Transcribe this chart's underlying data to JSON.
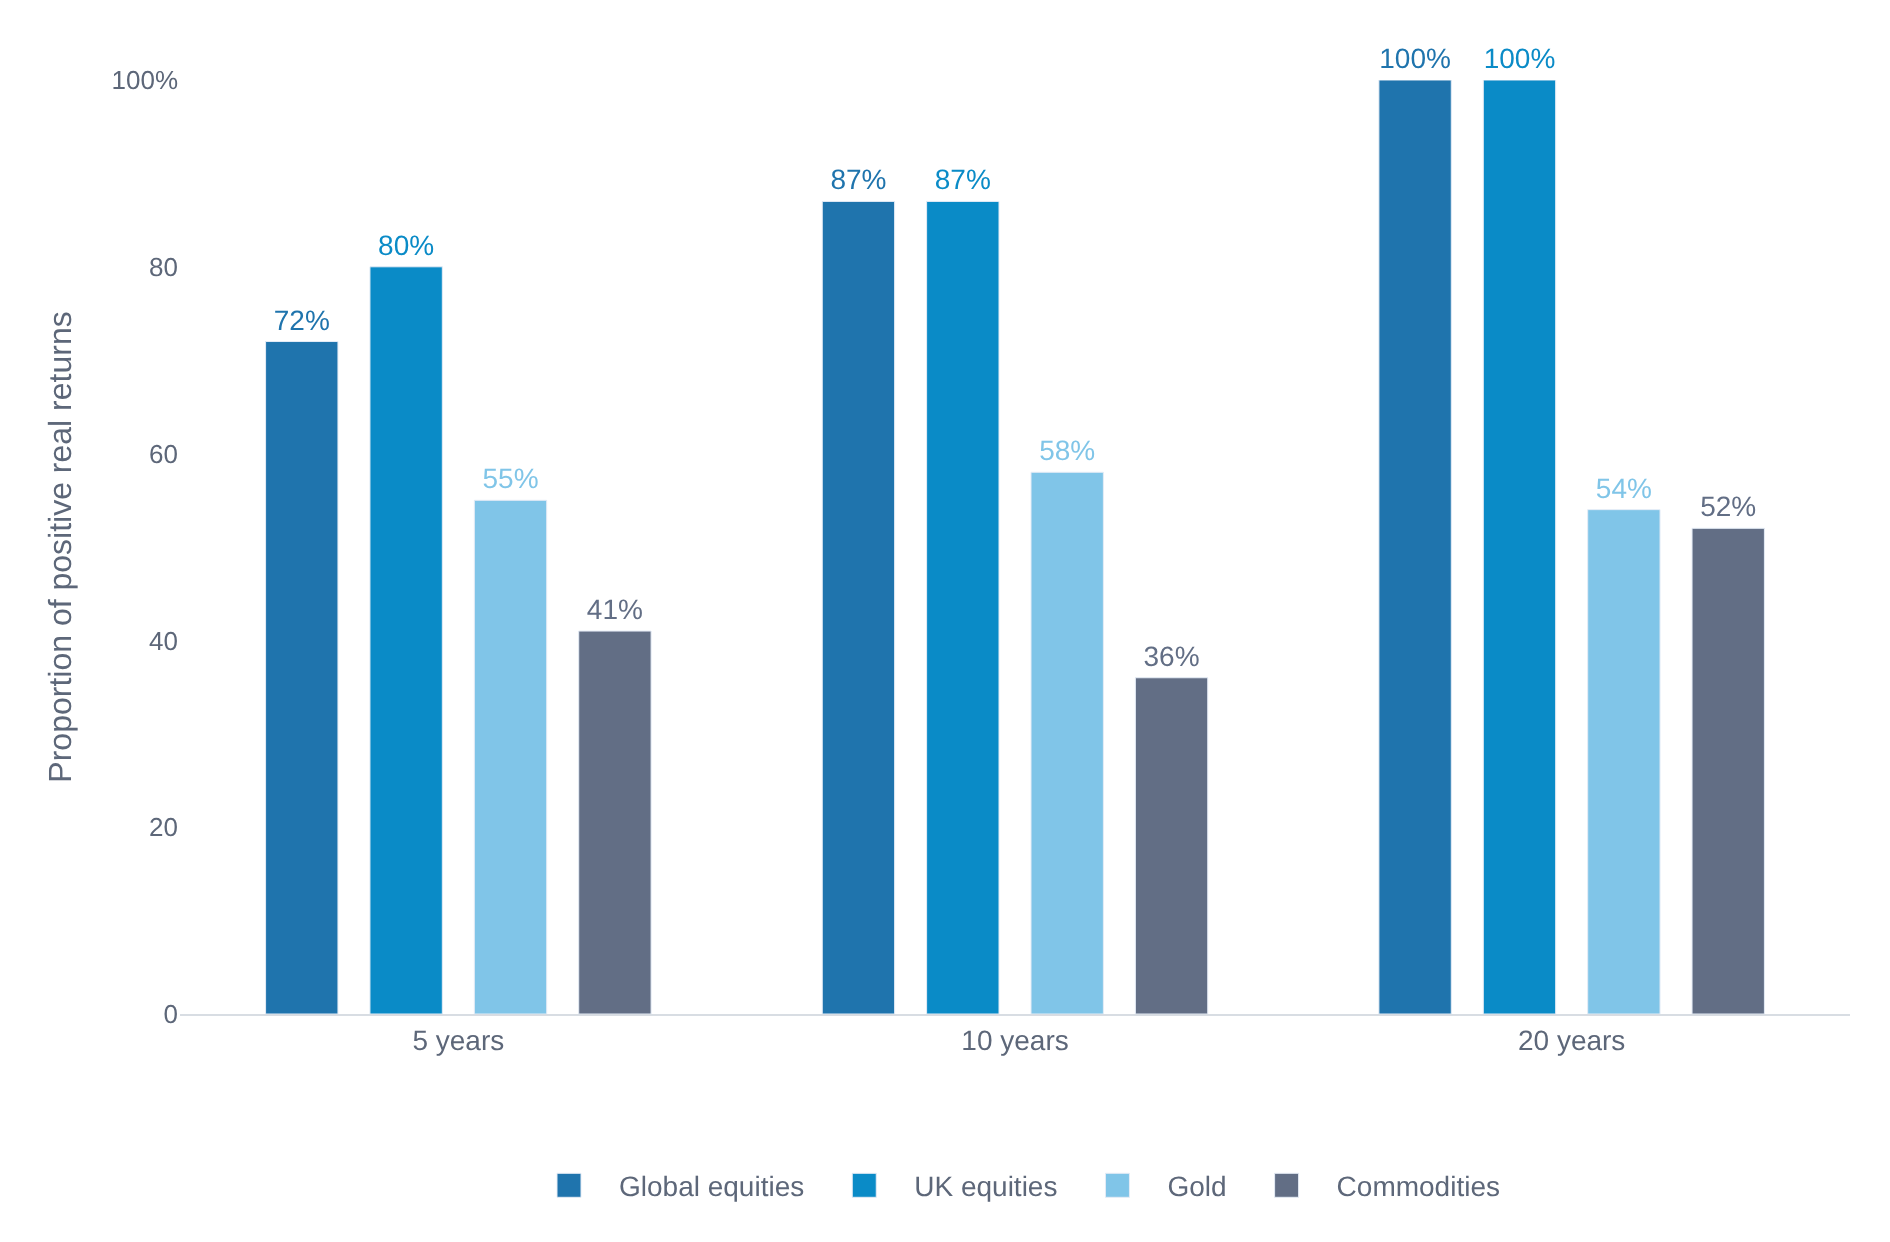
{
  "chart_data": {
    "type": "bar",
    "ylabel": "Proportion of positive real returns",
    "categories": [
      "5 years",
      "10 years",
      "20 years"
    ],
    "series": [
      {
        "name": "Global equities",
        "color": "#1f74ad",
        "values": [
          72,
          87,
          100
        ],
        "value_labels": [
          "72%",
          "87%",
          "100%"
        ]
      },
      {
        "name": "UK equities",
        "color": "#0a8bc7",
        "values": [
          80,
          87,
          100
        ],
        "value_labels": [
          "80%",
          "87%",
          "100%"
        ]
      },
      {
        "name": "Gold",
        "color": "#80c5e8",
        "values": [
          55,
          58,
          54
        ],
        "value_labels": [
          "55%",
          "58%",
          "54%"
        ]
      },
      {
        "name": "Commodities",
        "color": "#626e85",
        "values": [
          41,
          36,
          52
        ],
        "value_labels": [
          "41%",
          "36%",
          "52%"
        ]
      }
    ],
    "ylim": [
      0,
      100
    ],
    "yticks": [
      0,
      20,
      40,
      60,
      80,
      {
        "value": 100,
        "label": "100%"
      }
    ],
    "legend": "bottom"
  }
}
